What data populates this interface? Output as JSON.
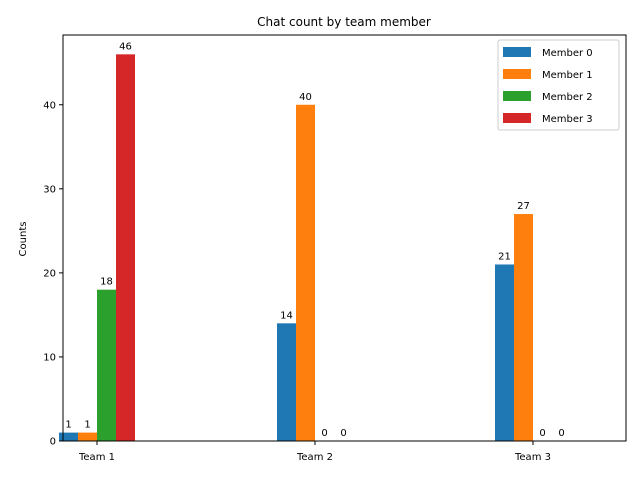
{
  "chart_data": {
    "type": "bar",
    "title": "Chat count by team member",
    "xlabel": "",
    "ylabel": "Counts",
    "categories": [
      "Team 1",
      "Team 2",
      "Team 3"
    ],
    "series": [
      {
        "name": "Member 0",
        "color": "#1f77b4",
        "values": [
          1,
          14,
          21
        ]
      },
      {
        "name": "Member 1",
        "color": "#ff7f0e",
        "values": [
          1,
          40,
          27
        ]
      },
      {
        "name": "Member 2",
        "color": "#2ca02c",
        "values": [
          18,
          0,
          0
        ]
      },
      {
        "name": "Member 3",
        "color": "#d62728",
        "values": [
          46,
          0,
          0
        ]
      }
    ],
    "ylim": [
      0,
      48.3
    ],
    "yticks": [
      0,
      10,
      20,
      30,
      40
    ],
    "grid": false,
    "legend": "top-right"
  }
}
